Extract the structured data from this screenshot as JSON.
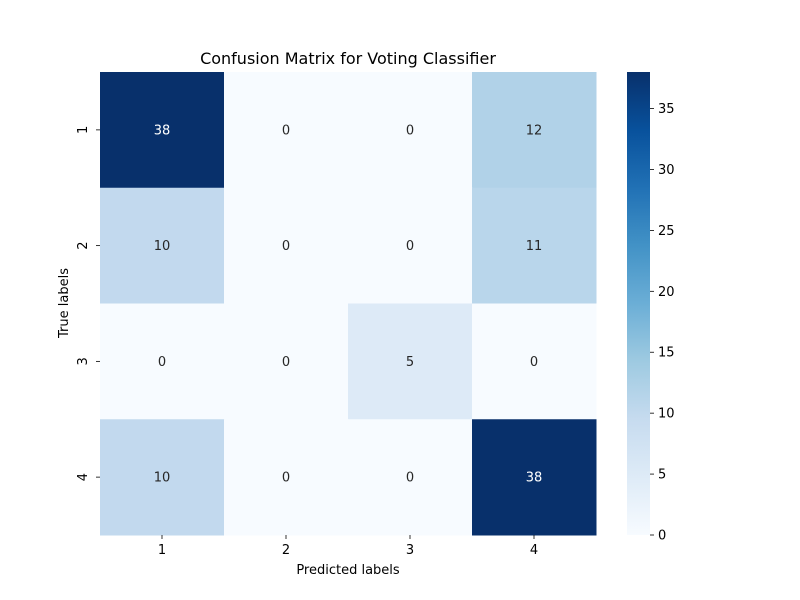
{
  "chart_data": {
    "type": "heatmap",
    "title": "Confusion Matrix for Voting Classifier",
    "xlabel": "Predicted labels",
    "ylabel": "True labels",
    "x_categories": [
      "1",
      "2",
      "3",
      "4"
    ],
    "y_categories": [
      "1",
      "2",
      "3",
      "4"
    ],
    "values": [
      [
        38,
        0,
        0,
        12
      ],
      [
        10,
        0,
        0,
        11
      ],
      [
        0,
        0,
        5,
        0
      ],
      [
        10,
        0,
        0,
        38
      ]
    ],
    "colormap": "Blues",
    "vmin": 0,
    "vmax": 38,
    "colorbar_ticks": [
      "0",
      "5",
      "10",
      "15",
      "20",
      "25",
      "30",
      "35"
    ],
    "annotations_shown": true
  }
}
